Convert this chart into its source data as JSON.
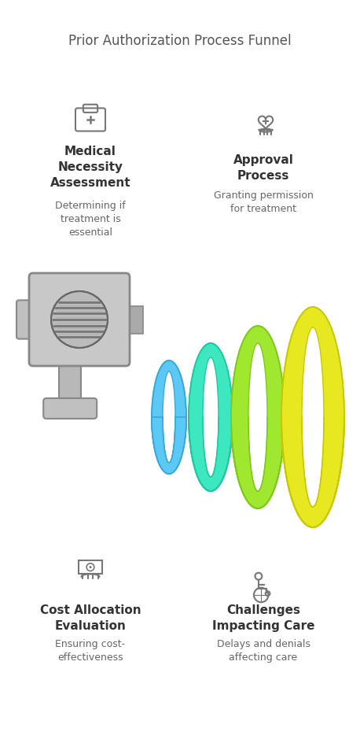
{
  "title": "Prior Authorization Process Funnel",
  "title_color": "#555555",
  "title_fontsize": 12,
  "background_color": "#ffffff",
  "top_left_label": "Medical\nNecessity\nAssessment",
  "top_left_desc": "Determining if\ntreatment is\nessential",
  "top_right_label": "Approval\nProcess",
  "top_right_desc": "Granting permission\nfor treatment",
  "bottom_left_label": "Cost Allocation\nEvaluation",
  "bottom_left_desc": "Ensuring cost-\neffectiveness",
  "bottom_right_label": "Challenges\nImpacting Care",
  "bottom_right_desc": "Delays and denials\naffecting care",
  "label_fontsize": 11,
  "desc_fontsize": 9,
  "label_color": "#333333",
  "desc_color": "#666666",
  "funnel_colors": [
    "#5bc8f5",
    "#3de8c0",
    "#a0e830",
    "#e8e820"
  ],
  "funnel_edge_colors": [
    "#3aa8d5",
    "#20c8a0",
    "#80c820",
    "#c8c800"
  ],
  "icon_color": "#777777",
  "machine_fill": "#c8c8c8",
  "machine_edge": "#888888"
}
